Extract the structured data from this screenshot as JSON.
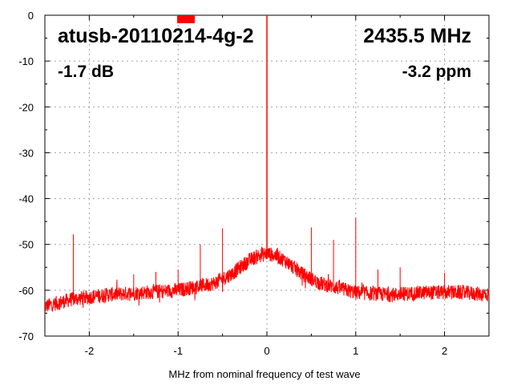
{
  "chart_data": {
    "type": "line",
    "xlabel": "MHz from nominal frequency of test wave",
    "ylabel": "",
    "xlim": [
      -2.5,
      2.5
    ],
    "ylim": [
      -70,
      0
    ],
    "x_ticks": [
      -2,
      -1,
      0,
      1,
      2
    ],
    "y_ticks": [
      0,
      -10,
      -20,
      -30,
      -40,
      -50,
      -60,
      -70
    ],
    "grid": true,
    "device": "atusb-20110214-4g-2",
    "frequency": "2435.5 MHz",
    "level": "-1.7 dB",
    "offset": "-3.2 ppm",
    "marker_color": "#ff0000",
    "series_color": "#ff0000",
    "noise_floor": {
      "x": [
        -2.5,
        -2.2,
        -1.8,
        -1.4,
        -1.0,
        -0.6,
        -0.4,
        -0.2,
        -0.1,
        0.0,
        0.1,
        0.2,
        0.4,
        0.6,
        1.0,
        1.4,
        1.8,
        2.2,
        2.5
      ],
      "y": [
        -63.5,
        -62.0,
        -61.0,
        -60.5,
        -60.0,
        -58.5,
        -56.5,
        -53.5,
        -52.5,
        -52.0,
        -52.5,
        -53.5,
        -56.5,
        -58.5,
        -60.5,
        -61.0,
        -60.5,
        -60.5,
        -61.0
      ]
    },
    "spurs": [
      {
        "x": -2.18,
        "y": -47.8
      },
      {
        "x": -1.5,
        "y": -56.5
      },
      {
        "x": -1.25,
        "y": -56.0
      },
      {
        "x": -1.0,
        "y": -55.5
      },
      {
        "x": -0.75,
        "y": -50.0
      },
      {
        "x": -0.5,
        "y": -46.5
      },
      {
        "x": -0.06,
        "y": -50.5
      },
      {
        "x": 0.0,
        "y": 0.0
      },
      {
        "x": 0.5,
        "y": -46.3
      },
      {
        "x": 0.75,
        "y": -49.0
      },
      {
        "x": 1.0,
        "y": -44.2
      },
      {
        "x": 1.25,
        "y": -55.5
      },
      {
        "x": 1.5,
        "y": -55.0
      },
      {
        "x": 2.0,
        "y": -56.2
      }
    ]
  }
}
